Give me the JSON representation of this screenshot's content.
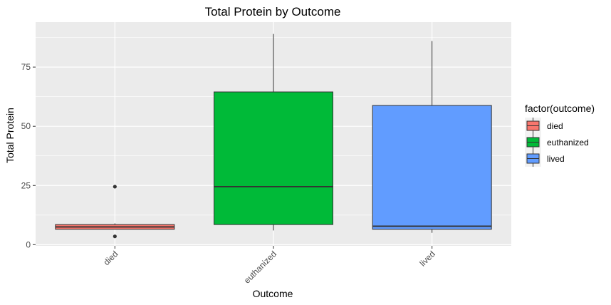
{
  "chart_data": {
    "type": "boxplot",
    "title": "Total Protein by Outcome",
    "xlabel": "Outcome",
    "ylabel": "Total Protein",
    "categories": [
      "died",
      "euthanized",
      "lived"
    ],
    "ylim": [
      -0.5,
      94
    ],
    "yticks": [
      0,
      25,
      50,
      75
    ],
    "grid": true,
    "legend": {
      "title": "factor(outcome)",
      "placement": "right",
      "entries": [
        "died",
        "euthanized",
        "lived"
      ]
    },
    "boxes": [
      {
        "name": "died",
        "color": "#F8766D",
        "whisker_low": 6.5,
        "q1": 6.5,
        "median": 7.5,
        "q3": 8.5,
        "whisker_high": 9,
        "outliers": [
          24.5,
          3.5
        ]
      },
      {
        "name": "euthanized",
        "color": "#00BA38",
        "whisker_low": 6,
        "q1": 8.5,
        "median": 24.5,
        "q3": 64.5,
        "whisker_high": 89,
        "outliers": []
      },
      {
        "name": "lived",
        "color": "#619CFF",
        "whisker_low": 5,
        "q1": 6.5,
        "median": 7.8,
        "q3": 58.8,
        "whisker_high": 86,
        "outliers": []
      }
    ]
  }
}
